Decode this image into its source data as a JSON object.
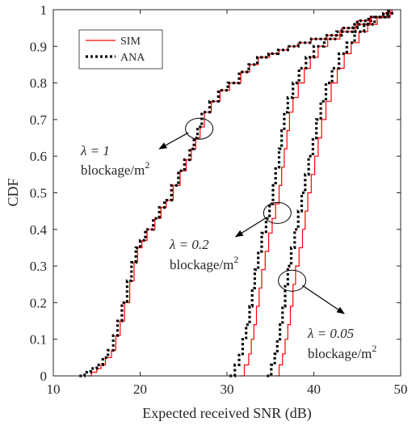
{
  "chart_data": {
    "type": "line",
    "title": "",
    "xlabel": "Expected received SNR (dB)",
    "ylabel": "CDF",
    "xlim": [
      10,
      50
    ],
    "ylim": [
      0,
      1
    ],
    "x_ticks": [
      "10",
      "20",
      "30",
      "40",
      "50"
    ],
    "y_ticks": [
      "0",
      "0.1",
      "0.2",
      "0.3",
      "0.4",
      "0.5",
      "0.6",
      "0.7",
      "0.8",
      "0.9",
      "1"
    ],
    "grid": false,
    "legend_position": "top-left",
    "legend": [
      {
        "label": "SIM",
        "color": "#ff0000",
        "style": "solid"
      },
      {
        "label": "ANA",
        "color": "#000000",
        "style": "dotted"
      }
    ],
    "curve_groups": [
      {
        "name": "λ = 1",
        "sim": [
          [
            14.0,
            0.0
          ],
          [
            14.4,
            0.01
          ],
          [
            15.0,
            0.02
          ],
          [
            15.5,
            0.03
          ],
          [
            16.0,
            0.05
          ],
          [
            16.7,
            0.07
          ],
          [
            17.2,
            0.11
          ],
          [
            17.7,
            0.15
          ],
          [
            18.2,
            0.2
          ],
          [
            18.8,
            0.26
          ],
          [
            19.3,
            0.31
          ],
          [
            19.7,
            0.35
          ],
          [
            20.2,
            0.37
          ],
          [
            20.8,
            0.4
          ],
          [
            21.7,
            0.43
          ],
          [
            22.4,
            0.46
          ],
          [
            23.0,
            0.48
          ],
          [
            23.8,
            0.52
          ],
          [
            24.6,
            0.56
          ],
          [
            25.3,
            0.59
          ],
          [
            25.9,
            0.62
          ],
          [
            26.4,
            0.65
          ],
          [
            26.9,
            0.68
          ],
          [
            27.4,
            0.72
          ],
          [
            28.2,
            0.75
          ],
          [
            29.2,
            0.78
          ],
          [
            30.3,
            0.8
          ],
          [
            31.6,
            0.83
          ],
          [
            32.6,
            0.85
          ],
          [
            33.6,
            0.87
          ],
          [
            34.9,
            0.88
          ],
          [
            36.0,
            0.89
          ],
          [
            37.0,
            0.9
          ],
          [
            38.2,
            0.91
          ],
          [
            39.7,
            0.92
          ],
          [
            41.5,
            0.93
          ],
          [
            43.2,
            0.95
          ],
          [
            45.0,
            0.97
          ],
          [
            46.6,
            0.98
          ],
          [
            48.0,
            0.99
          ],
          [
            49.0,
            1.0
          ]
        ],
        "ana": [
          [
            13.0,
            0.0
          ],
          [
            13.6,
            0.01
          ],
          [
            14.3,
            0.02
          ],
          [
            15.0,
            0.03
          ],
          [
            15.7,
            0.05
          ],
          [
            16.3,
            0.07
          ],
          [
            16.9,
            0.11
          ],
          [
            17.4,
            0.15
          ],
          [
            17.9,
            0.2
          ],
          [
            18.5,
            0.26
          ],
          [
            19.0,
            0.31
          ],
          [
            19.5,
            0.35
          ],
          [
            20.0,
            0.37
          ],
          [
            20.6,
            0.4
          ],
          [
            21.5,
            0.43
          ],
          [
            22.2,
            0.46
          ],
          [
            22.8,
            0.48
          ],
          [
            23.6,
            0.52
          ],
          [
            24.4,
            0.56
          ],
          [
            25.1,
            0.59
          ],
          [
            25.7,
            0.62
          ],
          [
            26.2,
            0.65
          ],
          [
            26.6,
            0.68
          ],
          [
            27.1,
            0.72
          ],
          [
            28.0,
            0.75
          ],
          [
            29.0,
            0.78
          ],
          [
            30.1,
            0.8
          ],
          [
            31.4,
            0.83
          ],
          [
            32.5,
            0.85
          ],
          [
            33.5,
            0.87
          ],
          [
            34.8,
            0.88
          ],
          [
            35.9,
            0.89
          ],
          [
            37.0,
            0.9
          ],
          [
            38.2,
            0.91
          ],
          [
            39.7,
            0.92
          ],
          [
            41.5,
            0.93
          ],
          [
            43.2,
            0.95
          ],
          [
            45.0,
            0.97
          ],
          [
            46.6,
            0.98
          ],
          [
            48.0,
            0.99
          ],
          [
            49.0,
            1.0
          ]
        ]
      },
      {
        "name": "λ = 0.2",
        "sim": [
          [
            31.5,
            0.0
          ],
          [
            32.0,
            0.03
          ],
          [
            32.5,
            0.06
          ],
          [
            32.8,
            0.1
          ],
          [
            33.1,
            0.14
          ],
          [
            33.4,
            0.19
          ],
          [
            33.7,
            0.24
          ],
          [
            34.0,
            0.29
          ],
          [
            34.4,
            0.34
          ],
          [
            34.8,
            0.39
          ],
          [
            35.2,
            0.43
          ],
          [
            35.6,
            0.47
          ],
          [
            36.0,
            0.52
          ],
          [
            36.3,
            0.57
          ],
          [
            36.6,
            0.62
          ],
          [
            36.9,
            0.67
          ],
          [
            37.2,
            0.72
          ],
          [
            37.6,
            0.76
          ],
          [
            38.2,
            0.8
          ],
          [
            38.9,
            0.84
          ],
          [
            39.6,
            0.87
          ],
          [
            40.5,
            0.9
          ],
          [
            41.6,
            0.92
          ],
          [
            43.0,
            0.94
          ],
          [
            44.8,
            0.96
          ],
          [
            46.5,
            0.98
          ],
          [
            48.5,
            1.0
          ]
        ],
        "ana": [
          [
            30.3,
            0.0
          ],
          [
            30.9,
            0.03
          ],
          [
            31.4,
            0.06
          ],
          [
            31.8,
            0.1
          ],
          [
            32.2,
            0.14
          ],
          [
            32.6,
            0.19
          ],
          [
            32.9,
            0.24
          ],
          [
            33.2,
            0.29
          ],
          [
            33.6,
            0.34
          ],
          [
            34.0,
            0.39
          ],
          [
            34.5,
            0.43
          ],
          [
            34.9,
            0.47
          ],
          [
            35.3,
            0.52
          ],
          [
            35.6,
            0.57
          ],
          [
            36.0,
            0.62
          ],
          [
            36.3,
            0.67
          ],
          [
            36.6,
            0.72
          ],
          [
            37.0,
            0.76
          ],
          [
            37.6,
            0.8
          ],
          [
            38.3,
            0.84
          ],
          [
            39.1,
            0.87
          ],
          [
            40.0,
            0.9
          ],
          [
            41.2,
            0.92
          ],
          [
            42.6,
            0.94
          ],
          [
            44.5,
            0.96
          ],
          [
            46.3,
            0.98
          ],
          [
            48.5,
            1.0
          ]
        ]
      },
      {
        "name": "λ = 0.05",
        "sim": [
          [
            35.5,
            0.0
          ],
          [
            36.0,
            0.03
          ],
          [
            36.4,
            0.06
          ],
          [
            36.7,
            0.1
          ],
          [
            37.0,
            0.14
          ],
          [
            37.3,
            0.19
          ],
          [
            37.6,
            0.25
          ],
          [
            37.9,
            0.3
          ],
          [
            38.3,
            0.35
          ],
          [
            38.7,
            0.4
          ],
          [
            39.0,
            0.45
          ],
          [
            39.3,
            0.5
          ],
          [
            39.7,
            0.55
          ],
          [
            40.1,
            0.6
          ],
          [
            40.5,
            0.65
          ],
          [
            40.9,
            0.7
          ],
          [
            41.4,
            0.75
          ],
          [
            42.0,
            0.8
          ],
          [
            42.7,
            0.84
          ],
          [
            43.5,
            0.88
          ],
          [
            44.3,
            0.91
          ],
          [
            45.2,
            0.94
          ],
          [
            46.2,
            0.96
          ],
          [
            47.3,
            0.98
          ],
          [
            48.8,
            1.0
          ]
        ],
        "ana": [
          [
            34.6,
            0.0
          ],
          [
            35.1,
            0.03
          ],
          [
            35.5,
            0.06
          ],
          [
            35.8,
            0.1
          ],
          [
            36.1,
            0.14
          ],
          [
            36.4,
            0.19
          ],
          [
            36.7,
            0.25
          ],
          [
            37.0,
            0.3
          ],
          [
            37.4,
            0.35
          ],
          [
            37.8,
            0.4
          ],
          [
            38.2,
            0.45
          ],
          [
            38.6,
            0.5
          ],
          [
            39.0,
            0.55
          ],
          [
            39.4,
            0.6
          ],
          [
            39.9,
            0.65
          ],
          [
            40.3,
            0.7
          ],
          [
            40.8,
            0.75
          ],
          [
            41.4,
            0.8
          ],
          [
            42.1,
            0.84
          ],
          [
            42.9,
            0.88
          ],
          [
            43.8,
            0.91
          ],
          [
            44.7,
            0.94
          ],
          [
            45.8,
            0.96
          ],
          [
            47.0,
            0.98
          ],
          [
            48.6,
            1.0
          ]
        ]
      }
    ],
    "annotations": [
      {
        "line1": "λ = 1",
        "line2": "blockage/m",
        "sup": "2",
        "ellipse_at": [
          26.8,
          0.675
        ],
        "arrow_to": [
          22.2,
          0.62
        ]
      },
      {
        "line1": "λ = 0.2",
        "line2": "blockage/m",
        "sup": "2",
        "ellipse_at": [
          35.8,
          0.445
        ],
        "arrow_to": [
          31.0,
          0.38
        ]
      },
      {
        "line1": "λ = 0.05",
        "line2": "blockage/m",
        "sup": "2",
        "ellipse_at": [
          37.5,
          0.26
        ],
        "arrow_to": [
          43.5,
          0.17
        ]
      }
    ]
  }
}
